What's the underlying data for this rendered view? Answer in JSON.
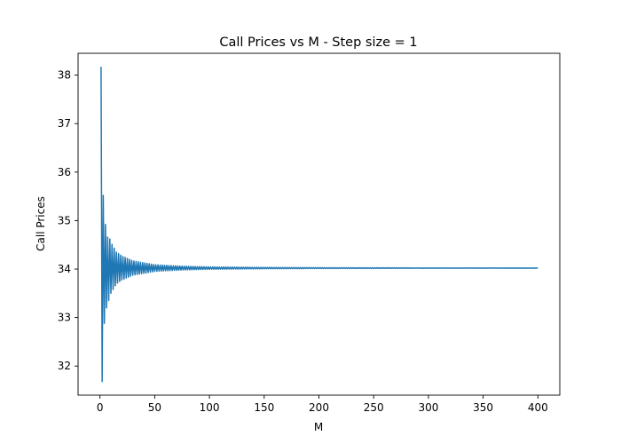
{
  "chart_data": {
    "type": "line",
    "title": "Call Prices vs M - Step size = 1",
    "xlabel": "M",
    "ylabel": "Call Prices",
    "xlim": [
      -20,
      420
    ],
    "ylim": [
      31.4,
      38.45
    ],
    "x_ticks": [
      0,
      50,
      100,
      150,
      200,
      250,
      300,
      350,
      400
    ],
    "y_ticks": [
      32,
      33,
      34,
      35,
      36,
      37,
      38
    ],
    "grid": false,
    "legend": "none",
    "series_color": "#1f77b4",
    "series": [
      {
        "x_start": 1,
        "x_end": 400,
        "x_step": 1,
        "converged_value": 34.02,
        "envelope_points": [
          [
            1,
            38.17
          ],
          [
            2,
            31.68
          ],
          [
            3,
            35.52
          ],
          [
            4,
            32.88
          ],
          [
            5,
            34.92
          ],
          [
            6,
            33.2
          ],
          [
            7,
            34.66
          ],
          [
            8,
            33.35
          ],
          [
            10,
            34.55
          ],
          [
            15,
            34.35
          ],
          [
            20,
            34.27
          ],
          [
            30,
            34.17
          ],
          [
            50,
            34.09
          ],
          [
            75,
            34.06
          ],
          [
            100,
            34.045
          ],
          [
            150,
            34.035
          ],
          [
            200,
            34.03
          ],
          [
            300,
            34.025
          ],
          [
            400,
            34.023
          ]
        ]
      }
    ]
  }
}
